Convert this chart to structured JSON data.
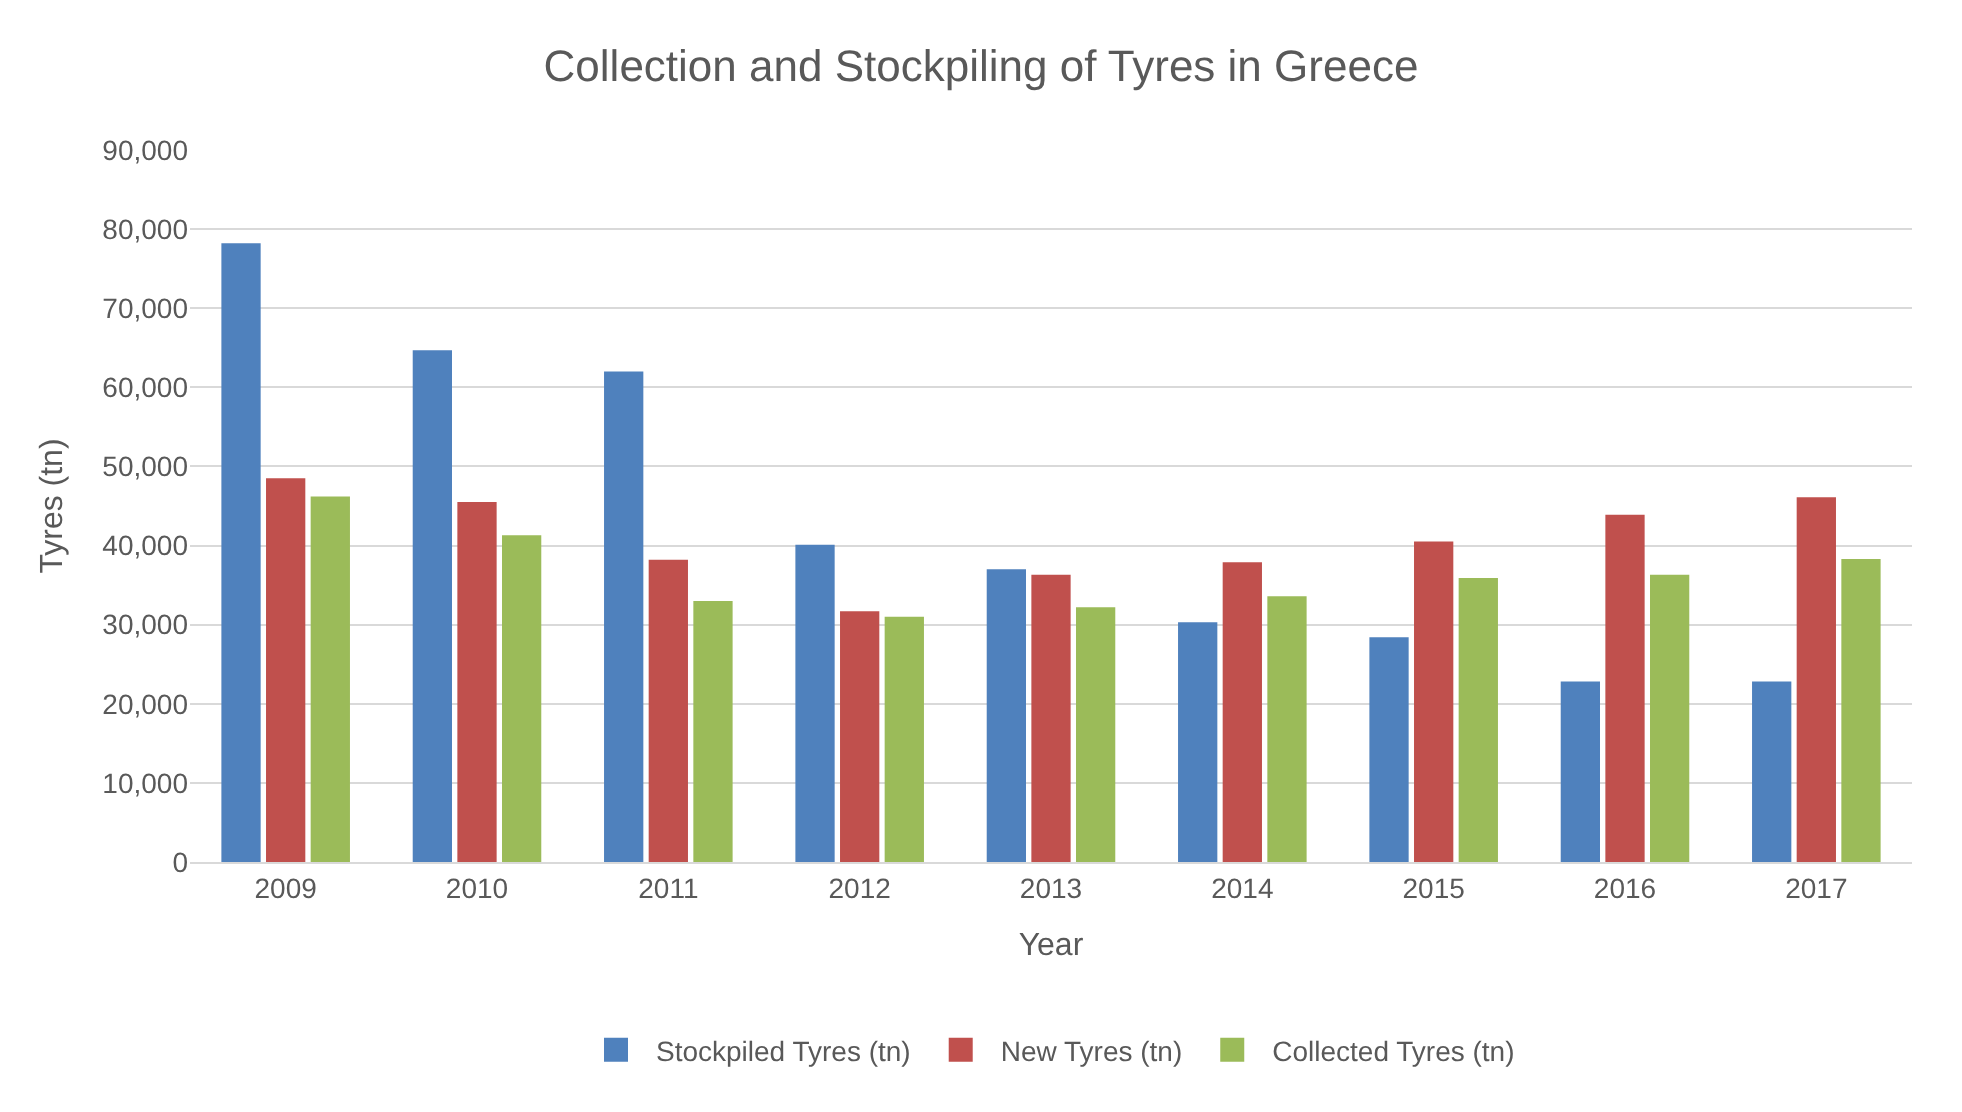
{
  "chart_data": {
    "type": "bar",
    "title": "Collection and Stockpiling of Tyres in Greece",
    "xlabel": "Year",
    "ylabel": "Tyres (tn)",
    "categories": [
      "2009",
      "2010",
      "2011",
      "2012",
      "2013",
      "2014",
      "2015",
      "2016",
      "2017"
    ],
    "series": [
      {
        "name": "Stockpiled Tyres (tn)",
        "color": "#4f81bd",
        "values": [
          78200,
          64700,
          62000,
          40100,
          37000,
          30300,
          28400,
          22800,
          22800
        ]
      },
      {
        "name": "New Tyres (tn)",
        "color": "#c0504d",
        "values": [
          48500,
          45500,
          38200,
          31700,
          36300,
          37900,
          40500,
          43900,
          46100
        ]
      },
      {
        "name": "Collected Tyres (tn)",
        "color": "#9bbb59",
        "values": [
          46200,
          41300,
          33000,
          31000,
          32200,
          33600,
          35900,
          36300,
          38300
        ]
      }
    ],
    "ylim": [
      0,
      90000
    ],
    "yticks": [
      {
        "value": 0,
        "label": "0"
      },
      {
        "value": 10000,
        "label": "10,000"
      },
      {
        "value": 20000,
        "label": "20,000"
      },
      {
        "value": 30000,
        "label": "30,000"
      },
      {
        "value": 40000,
        "label": "40,000"
      },
      {
        "value": 50000,
        "label": "50,000"
      },
      {
        "value": 60000,
        "label": "60,000"
      },
      {
        "value": 70000,
        "label": "70,000"
      },
      {
        "value": 80000,
        "label": "80,000"
      },
      {
        "value": 90000,
        "label": "90,000"
      }
    ],
    "grid": "y",
    "legend": "bottom"
  }
}
